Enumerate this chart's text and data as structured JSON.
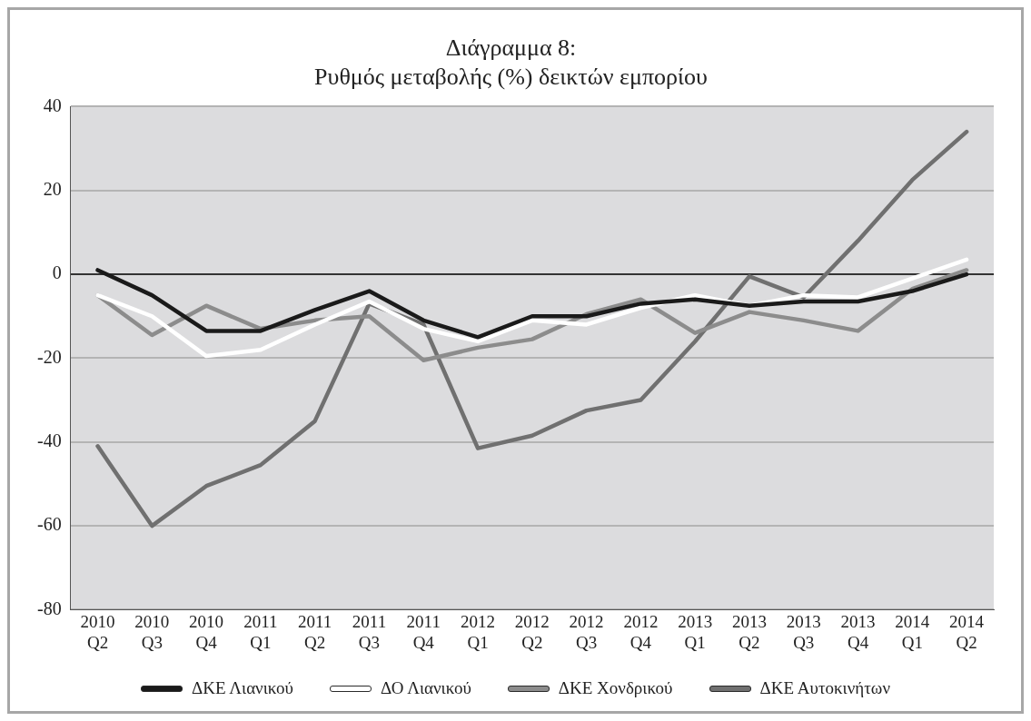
{
  "chart_data": {
    "type": "line",
    "title": "Διάγραμμα 8:\nΡυθμός μεταβολής (%) δεικτών εμπορίου",
    "categories": [
      "2010 Q2",
      "2010 Q3",
      "2010 Q4",
      "2011 Q1",
      "2011 Q2",
      "2011 Q3",
      "2011 Q4",
      "2012 Q1",
      "2012 Q2",
      "2012 Q3",
      "2012 Q4",
      "2013 Q1",
      "2013 Q2",
      "2013 Q3",
      "2013 Q4",
      "2014 Q1",
      "2014 Q2"
    ],
    "series": [
      {
        "name": "ΔΚΕ Λιανικού",
        "color": "#1a1a1a",
        "values": [
          1,
          -5,
          -13.5,
          -13.5,
          -8.5,
          -4,
          -11,
          -15,
          -10,
          -10,
          -7,
          -6,
          -7.5,
          -6.5,
          -6.5,
          -4,
          0
        ]
      },
      {
        "name": "ΔΟ Λιανικού",
        "color": "#ffffff",
        "values": [
          -5,
          -10,
          -19.5,
          -18,
          -12,
          -6.5,
          -13,
          -16,
          -11,
          -12,
          -8,
          -5,
          -7.5,
          -5,
          -5.5,
          -1,
          3.5
        ]
      },
      {
        "name": "ΔΚΕ Χονδρικού",
        "color": "#8c8c8c",
        "values": [
          -5,
          -14.5,
          -7.5,
          -13,
          -11,
          -10,
          -20.5,
          -17.5,
          -15.5,
          -9.5,
          -6,
          -14,
          -9,
          -11,
          -13.5,
          -3.5,
          1
        ]
      },
      {
        "name": "ΔΚΕ Αυτοκινήτων",
        "color": "#707070",
        "values": [
          -41,
          -60,
          -50.5,
          -45.5,
          -35,
          -7,
          -12,
          -41.5,
          -38.5,
          -32.5,
          -30,
          -16,
          -0.5,
          -5.5,
          8,
          22.5,
          34
        ]
      }
    ],
    "ylim": [
      -80,
      40
    ],
    "yticks": [
      -80,
      -60,
      -40,
      -20,
      0,
      20,
      40
    ],
    "grid": "y",
    "legend": "bottom",
    "marker": "none",
    "line_style": "solid"
  }
}
